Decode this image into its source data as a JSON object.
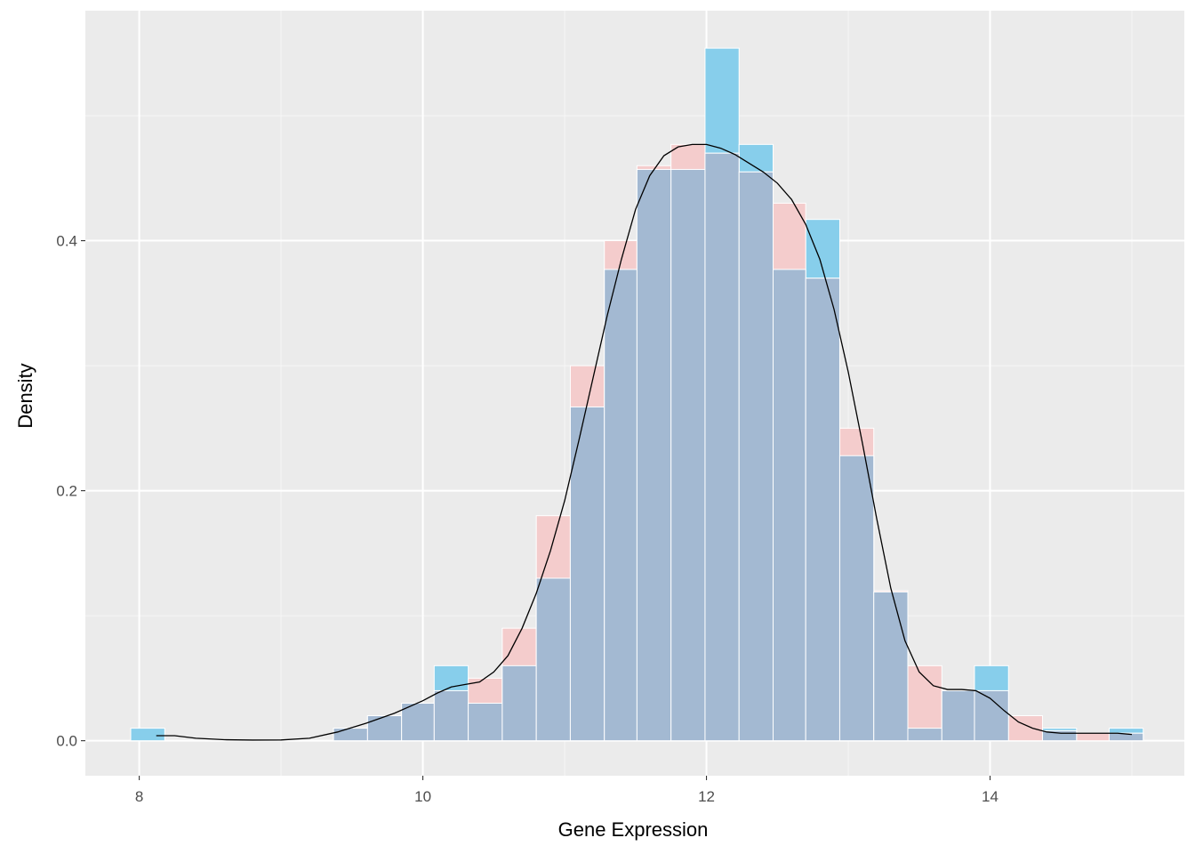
{
  "chart_data": {
    "type": "histogram",
    "xlabel": "Gene Expression",
    "ylabel": "Density",
    "xlim": [
      7.62,
      15.37
    ],
    "ylim": [
      -0.028,
      0.584
    ],
    "x_ticks": [
      8,
      10,
      12,
      14
    ],
    "x_tick_labels": [
      "8",
      "10",
      "12",
      "14"
    ],
    "y_ticks": [
      0.0,
      0.2,
      0.4
    ],
    "y_tick_labels": [
      "0.0",
      "0.2",
      "0.4"
    ],
    "x_minor_ticks": [
      9,
      11,
      13,
      15
    ],
    "y_minor_ticks": [
      0.1,
      0.3,
      0.5
    ],
    "grid": true,
    "bin_width": 0.238,
    "histogram_blue": {
      "color": "#87CEEB",
      "bins": [
        {
          "x0": 7.94,
          "x1": 8.18,
          "density": 0.01
        },
        {
          "x0": 9.37,
          "x1": 9.61,
          "density": 0.01
        },
        {
          "x0": 9.61,
          "x1": 9.85,
          "density": 0.02
        },
        {
          "x0": 9.85,
          "x1": 10.08,
          "density": 0.03
        },
        {
          "x0": 10.08,
          "x1": 10.32,
          "density": 0.06
        },
        {
          "x0": 10.32,
          "x1": 10.56,
          "density": 0.03
        },
        {
          "x0": 10.56,
          "x1": 10.8,
          "density": 0.06
        },
        {
          "x0": 10.8,
          "x1": 11.04,
          "density": 0.13
        },
        {
          "x0": 11.04,
          "x1": 11.28,
          "density": 0.267
        },
        {
          "x0": 11.28,
          "x1": 11.51,
          "density": 0.377
        },
        {
          "x0": 11.51,
          "x1": 11.75,
          "density": 0.457
        },
        {
          "x0": 11.75,
          "x1": 11.99,
          "density": 0.457
        },
        {
          "x0": 11.99,
          "x1": 12.23,
          "density": 0.554
        },
        {
          "x0": 12.23,
          "x1": 12.47,
          "density": 0.477
        },
        {
          "x0": 12.47,
          "x1": 12.7,
          "density": 0.377
        },
        {
          "x0": 12.7,
          "x1": 12.94,
          "density": 0.417
        },
        {
          "x0": 12.94,
          "x1": 13.18,
          "density": 0.228
        },
        {
          "x0": 13.18,
          "x1": 13.42,
          "density": 0.119
        },
        {
          "x0": 13.42,
          "x1": 13.66,
          "density": 0.01
        },
        {
          "x0": 13.66,
          "x1": 13.89,
          "density": 0.04
        },
        {
          "x0": 13.89,
          "x1": 14.13,
          "density": 0.06
        },
        {
          "x0": 14.37,
          "x1": 14.61,
          "density": 0.01
        },
        {
          "x0": 14.84,
          "x1": 15.08,
          "density": 0.01
        }
      ]
    },
    "histogram_pink": {
      "color": "#F4CCCC",
      "bins": [
        {
          "x0": 9.37,
          "x1": 9.61,
          "density": 0.01
        },
        {
          "x0": 9.61,
          "x1": 9.85,
          "density": 0.02
        },
        {
          "x0": 9.85,
          "x1": 10.08,
          "density": 0.03
        },
        {
          "x0": 10.08,
          "x1": 10.32,
          "density": 0.04
        },
        {
          "x0": 10.32,
          "x1": 10.56,
          "density": 0.05
        },
        {
          "x0": 10.56,
          "x1": 10.8,
          "density": 0.09
        },
        {
          "x0": 10.8,
          "x1": 11.04,
          "density": 0.18
        },
        {
          "x0": 11.04,
          "x1": 11.28,
          "density": 0.3
        },
        {
          "x0": 11.28,
          "x1": 11.51,
          "density": 0.4
        },
        {
          "x0": 11.51,
          "x1": 11.75,
          "density": 0.46
        },
        {
          "x0": 11.75,
          "x1": 11.99,
          "density": 0.477
        },
        {
          "x0": 11.99,
          "x1": 12.23,
          "density": 0.47
        },
        {
          "x0": 12.23,
          "x1": 12.47,
          "density": 0.455
        },
        {
          "x0": 12.47,
          "x1": 12.7,
          "density": 0.43
        },
        {
          "x0": 12.7,
          "x1": 12.94,
          "density": 0.37
        },
        {
          "x0": 12.94,
          "x1": 13.18,
          "density": 0.25
        },
        {
          "x0": 13.18,
          "x1": 13.42,
          "density": 0.12
        },
        {
          "x0": 13.42,
          "x1": 13.66,
          "density": 0.06
        },
        {
          "x0": 13.66,
          "x1": 13.89,
          "density": 0.04
        },
        {
          "x0": 13.89,
          "x1": 14.13,
          "density": 0.04
        },
        {
          "x0": 14.13,
          "x1": 14.37,
          "density": 0.02
        },
        {
          "x0": 14.37,
          "x1": 14.61,
          "density": 0.008
        },
        {
          "x0": 14.61,
          "x1": 14.84,
          "density": 0.006
        },
        {
          "x0": 14.84,
          "x1": 15.08,
          "density": 0.006
        }
      ]
    },
    "overlap_color": "#A3B9D2",
    "density_curve": {
      "color": "#000000",
      "x": [
        8.12,
        8.25,
        8.4,
        8.6,
        8.8,
        9.0,
        9.2,
        9.4,
        9.6,
        9.8,
        10.0,
        10.1,
        10.2,
        10.3,
        10.4,
        10.5,
        10.6,
        10.7,
        10.8,
        10.9,
        11.0,
        11.1,
        11.2,
        11.3,
        11.4,
        11.5,
        11.6,
        11.7,
        11.8,
        11.9,
        12.0,
        12.1,
        12.2,
        12.3,
        12.4,
        12.5,
        12.6,
        12.7,
        12.8,
        12.9,
        13.0,
        13.1,
        13.2,
        13.3,
        13.4,
        13.5,
        13.6,
        13.7,
        13.8,
        13.9,
        14.0,
        14.1,
        14.2,
        14.3,
        14.4,
        14.5,
        14.6,
        14.7,
        14.8,
        14.9,
        15.0
      ],
      "y": [
        0.004,
        0.004,
        0.002,
        0.0008,
        0.0005,
        0.0006,
        0.002,
        0.007,
        0.014,
        0.022,
        0.032,
        0.038,
        0.043,
        0.045,
        0.047,
        0.055,
        0.068,
        0.09,
        0.118,
        0.152,
        0.192,
        0.24,
        0.29,
        0.34,
        0.385,
        0.425,
        0.452,
        0.468,
        0.475,
        0.477,
        0.477,
        0.474,
        0.469,
        0.462,
        0.455,
        0.446,
        0.433,
        0.413,
        0.385,
        0.345,
        0.295,
        0.238,
        0.178,
        0.122,
        0.08,
        0.055,
        0.044,
        0.041,
        0.041,
        0.04,
        0.034,
        0.024,
        0.015,
        0.01,
        0.007,
        0.006,
        0.006,
        0.006,
        0.006,
        0.006,
        0.005
      ]
    }
  }
}
